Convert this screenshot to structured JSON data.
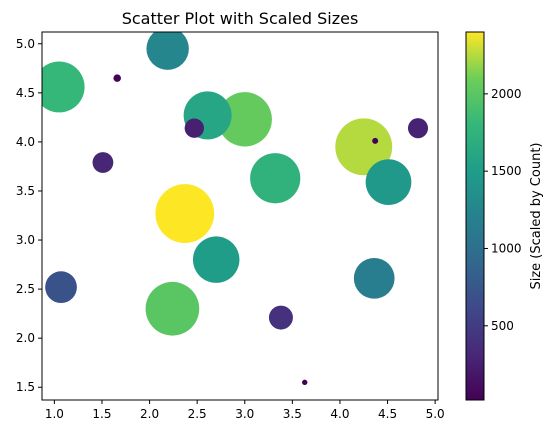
{
  "chart_data": {
    "type": "scatter",
    "title": "Scatter Plot with Scaled Sizes",
    "xlabel": "",
    "ylabel": "",
    "xlim": [
      0.87,
      5.03
    ],
    "ylim": [
      1.37,
      5.12
    ],
    "x_ticks": [
      1.0,
      1.5,
      2.0,
      2.5,
      3.0,
      3.5,
      4.0,
      4.5,
      5.0
    ],
    "x_tick_labels": [
      "1.0",
      "1.5",
      "2.0",
      "2.5",
      "3.0",
      "3.5",
      "4.0",
      "4.5",
      "5.0"
    ],
    "y_ticks": [
      1.5,
      2.0,
      2.5,
      3.0,
      3.5,
      4.0,
      4.5,
      5.0
    ],
    "y_tick_labels": [
      "1.5",
      "2.0",
      "2.5",
      "3.0",
      "3.5",
      "4.0",
      "4.5",
      "5.0"
    ],
    "grid": false,
    "colormap": "viridis",
    "color_range": [
      20,
      2400
    ],
    "colorbar": {
      "label": "Size (Scaled by Count)",
      "ticks": [
        500,
        1000,
        1500,
        2000
      ],
      "tick_labels": [
        "500",
        "1000",
        "1500",
        "2000"
      ]
    },
    "points": [
      {
        "x": 1.05,
        "y": 4.56,
        "size": 1800
      },
      {
        "x": 2.19,
        "y": 4.95,
        "size": 1250
      },
      {
        "x": 1.66,
        "y": 4.65,
        "size": 40
      },
      {
        "x": 1.51,
        "y": 3.79,
        "size": 300
      },
      {
        "x": 2.47,
        "y": 4.14,
        "size": 260
      },
      {
        "x": 2.61,
        "y": 4.27,
        "size": 1600
      },
      {
        "x": 3.0,
        "y": 4.23,
        "size": 2050
      },
      {
        "x": 3.32,
        "y": 3.63,
        "size": 1750
      },
      {
        "x": 2.37,
        "y": 3.27,
        "size": 2400
      },
      {
        "x": 2.7,
        "y": 2.8,
        "size": 1500
      },
      {
        "x": 2.24,
        "y": 2.3,
        "size": 2000
      },
      {
        "x": 1.07,
        "y": 2.52,
        "size": 700
      },
      {
        "x": 3.38,
        "y": 2.21,
        "size": 400
      },
      {
        "x": 3.63,
        "y": 1.55,
        "size": 20
      },
      {
        "x": 4.25,
        "y": 3.95,
        "size": 2250
      },
      {
        "x": 4.37,
        "y": 4.01,
        "size": 25
      },
      {
        "x": 4.51,
        "y": 3.59,
        "size": 1450
      },
      {
        "x": 4.82,
        "y": 4.14,
        "size": 280
      },
      {
        "x": 4.36,
        "y": 2.61,
        "size": 1150
      }
    ]
  }
}
